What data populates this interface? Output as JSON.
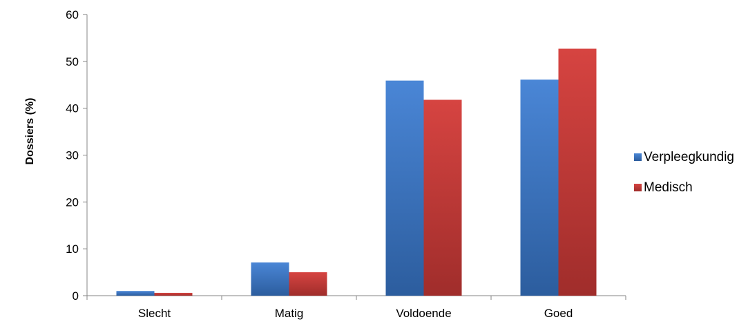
{
  "chart_data": {
    "type": "bar",
    "title": "",
    "xlabel": "",
    "ylabel": "Dossiers (%)",
    "ylim": [
      0,
      60
    ],
    "yticks": [
      0,
      10,
      20,
      30,
      40,
      50,
      60
    ],
    "categories": [
      "Slecht",
      "Matig",
      "Voldoende",
      "Goed"
    ],
    "series": [
      {
        "name": "Verpleegkundig",
        "values": [
          1.0,
          7.1,
          45.9,
          46.1
        ]
      },
      {
        "name": "Medisch",
        "values": [
          0.6,
          5.0,
          41.8,
          52.7
        ]
      }
    ],
    "grid": false,
    "legend": "right"
  },
  "colors": {
    "Verpleegkundig": [
      "#4a86d6",
      "#2c5d9e"
    ],
    "Medisch": [
      "#d64441",
      "#a02d2b"
    ]
  }
}
